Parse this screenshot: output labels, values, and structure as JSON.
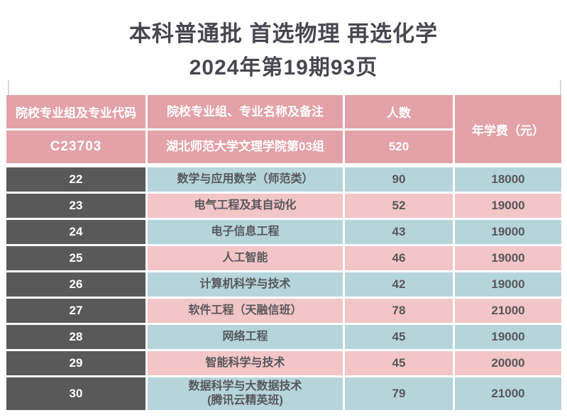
{
  "title": {
    "line1": "本科普通批  首选物理  再选化学",
    "line2": "2024年第19期93页"
  },
  "table": {
    "header": {
      "col_code": "院校专业组及专业代码",
      "col_name": "院校专业组、专业名称及备注",
      "col_count": "人数",
      "col_fee": "年学费（元）"
    },
    "group": {
      "code": "C23703",
      "name": "湖北师范大学文理学院第03组",
      "count": "520"
    },
    "rows": [
      {
        "code": "22",
        "name": "数学与应用数学（师范类）",
        "count": "90",
        "fee": "18000"
      },
      {
        "code": "23",
        "name": "电气工程及其自动化",
        "count": "52",
        "fee": "19000"
      },
      {
        "code": "24",
        "name": "电子信息工程",
        "count": "43",
        "fee": "19000"
      },
      {
        "code": "25",
        "name": "人工智能",
        "count": "46",
        "fee": "19000"
      },
      {
        "code": "26",
        "name": "计算机科学与技术",
        "count": "42",
        "fee": "19000"
      },
      {
        "code": "27",
        "name": "软件工程（天融信班）",
        "count": "78",
        "fee": "21000"
      },
      {
        "code": "28",
        "name": "网络工程",
        "count": "45",
        "fee": "19000"
      },
      {
        "code": "29",
        "name": "智能科学与技术",
        "count": "45",
        "fee": "20000"
      },
      {
        "code": "30",
        "name": "数据科学与大数据技术\n(腾讯云精英班)",
        "count": "79",
        "fee": "21000"
      }
    ],
    "colors": {
      "header_pink": "#e2a2a7",
      "row_pink": "#f2c5c7",
      "row_blue": "#b5d5db",
      "code_column_dark": "#595959",
      "cell_text": "#57575b",
      "title_text": "#47474f"
    }
  }
}
